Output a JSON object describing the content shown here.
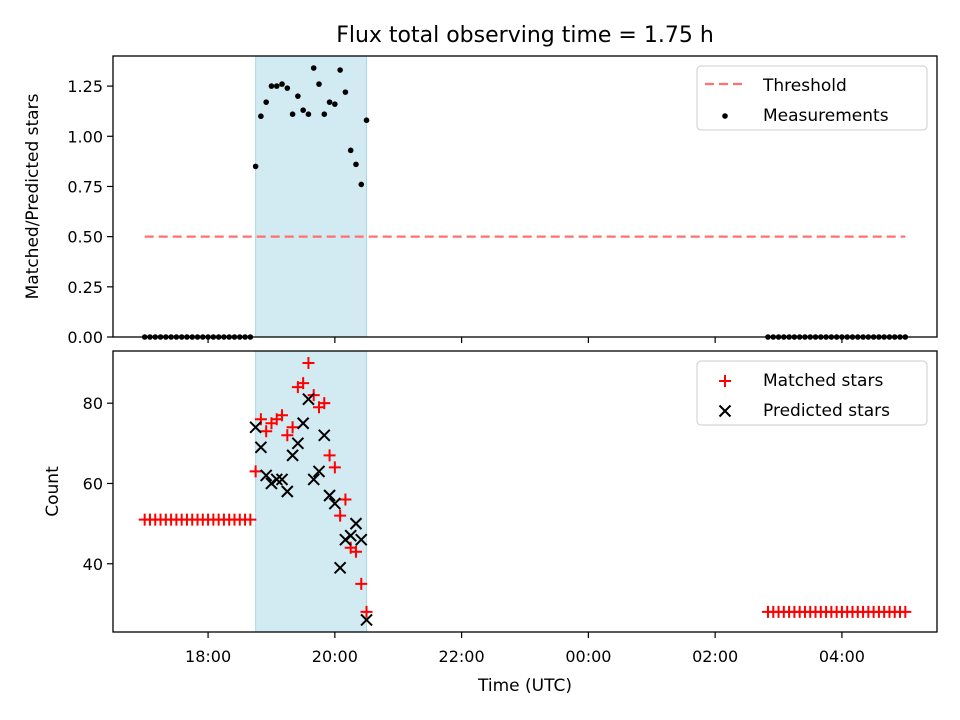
{
  "title": "Flux total observing time = 1.75 h",
  "xlabel": "Time (UTC)",
  "colors": {
    "matched": "#ff0000",
    "predicted": "#000000",
    "threshold": "#ff7070",
    "measurements": "#000000",
    "shade": "#add8e6"
  },
  "chart_data": [
    {
      "type": "scatter",
      "ylabel": "Matched/Predicted stars",
      "ylim": [
        0,
        1.4
      ],
      "yticks": [
        "0.00",
        "0.25",
        "0.50",
        "0.75",
        "1.00",
        "1.25"
      ],
      "shaded_interval": [
        "18:45",
        "20:30"
      ],
      "legend": {
        "placement": "top-right",
        "entries": [
          "Threshold",
          "Measurements"
        ]
      },
      "series": [
        {
          "name": "Threshold",
          "kind": "dashed-line",
          "x": [
            "17:00",
            "05:00"
          ],
          "y": [
            0.5,
            0.5
          ]
        },
        {
          "name": "Measurements",
          "kind": "dots",
          "x": [
            "17:00",
            "17:05",
            "17:10",
            "17:15",
            "17:20",
            "17:25",
            "17:30",
            "17:35",
            "17:40",
            "17:45",
            "17:50",
            "17:55",
            "18:00",
            "18:05",
            "18:10",
            "18:15",
            "18:20",
            "18:25",
            "18:30",
            "18:35",
            "18:40",
            "18:45",
            "18:50",
            "18:55",
            "19:00",
            "19:05",
            "19:10",
            "19:15",
            "19:20",
            "19:25",
            "19:30",
            "19:35",
            "19:40",
            "19:45",
            "19:50",
            "19:55",
            "20:00",
            "20:05",
            "20:10",
            "20:15",
            "20:20",
            "20:25",
            "20:30",
            "02:50",
            "02:55",
            "03:00",
            "03:05",
            "03:10",
            "03:15",
            "03:20",
            "03:25",
            "03:30",
            "03:35",
            "03:40",
            "03:45",
            "03:50",
            "03:55",
            "04:00",
            "04:05",
            "04:10",
            "04:15",
            "04:20",
            "04:25",
            "04:30",
            "04:35",
            "04:40",
            "04:45",
            "04:50",
            "04:55",
            "05:00"
          ],
          "y": [
            0,
            0,
            0,
            0,
            0,
            0,
            0,
            0,
            0,
            0,
            0,
            0,
            0,
            0,
            0,
            0,
            0,
            0,
            0,
            0,
            0,
            0.85,
            1.1,
            1.17,
            1.25,
            1.25,
            1.26,
            1.24,
            1.11,
            1.2,
            1.13,
            1.11,
            1.34,
            1.26,
            1.11,
            1.17,
            1.16,
            1.33,
            1.22,
            0.93,
            0.86,
            0.76,
            1.08,
            0,
            0,
            0,
            0,
            0,
            0,
            0,
            0,
            0,
            0,
            0,
            0,
            0,
            0,
            0,
            0,
            0,
            0,
            0,
            0,
            0,
            0,
            0,
            0,
            0,
            0,
            0
          ]
        }
      ]
    },
    {
      "type": "scatter",
      "ylabel": "Count",
      "ylim": [
        23,
        93
      ],
      "yticks": [
        "40",
        "60",
        "80"
      ],
      "xlim": [
        "16:30",
        "05:30"
      ],
      "xticks": [
        "18:00",
        "20:00",
        "22:00",
        "00:00",
        "02:00",
        "04:00"
      ],
      "shaded_interval": [
        "18:45",
        "20:30"
      ],
      "legend": {
        "placement": "top-right",
        "entries": [
          "Matched stars",
          "Predicted stars"
        ]
      },
      "series": [
        {
          "name": "Matched stars",
          "marker": "plus",
          "x": [
            "17:00",
            "17:05",
            "17:10",
            "17:15",
            "17:20",
            "17:25",
            "17:30",
            "17:35",
            "17:40",
            "17:45",
            "17:50",
            "17:55",
            "18:00",
            "18:05",
            "18:10",
            "18:15",
            "18:20",
            "18:25",
            "18:30",
            "18:35",
            "18:40",
            "18:45",
            "18:50",
            "18:55",
            "19:00",
            "19:05",
            "19:10",
            "19:15",
            "19:20",
            "19:25",
            "19:30",
            "19:35",
            "19:40",
            "19:45",
            "19:50",
            "19:55",
            "20:00",
            "20:05",
            "20:10",
            "20:15",
            "20:20",
            "20:25",
            "20:30",
            "02:50",
            "02:55",
            "03:00",
            "03:05",
            "03:10",
            "03:15",
            "03:20",
            "03:25",
            "03:30",
            "03:35",
            "03:40",
            "03:45",
            "03:50",
            "03:55",
            "04:00",
            "04:05",
            "04:10",
            "04:15",
            "04:20",
            "04:25",
            "04:30",
            "04:35",
            "04:40",
            "04:45",
            "04:50",
            "04:55",
            "05:00"
          ],
          "y": [
            51,
            51,
            51,
            51,
            51,
            51,
            51,
            51,
            51,
            51,
            51,
            51,
            51,
            51,
            51,
            51,
            51,
            51,
            51,
            51,
            51,
            63,
            76,
            73,
            75,
            76,
            77,
            72,
            74,
            84,
            85,
            90,
            82,
            79,
            80,
            67,
            64,
            52,
            56,
            44,
            43,
            35,
            28,
            28,
            28,
            28,
            28,
            28,
            28,
            28,
            28,
            28,
            28,
            28,
            28,
            28,
            28,
            28,
            28,
            28,
            28,
            28,
            28,
            28,
            28,
            28,
            28,
            28,
            28,
            28
          ]
        },
        {
          "name": "Predicted stars",
          "marker": "x",
          "x": [
            "18:45",
            "18:50",
            "18:55",
            "19:00",
            "19:05",
            "19:10",
            "19:15",
            "19:20",
            "19:25",
            "19:30",
            "19:35",
            "19:40",
            "19:45",
            "19:50",
            "19:55",
            "20:00",
            "20:05",
            "20:10",
            "20:15",
            "20:20",
            "20:25",
            "20:30"
          ],
          "y": [
            74,
            69,
            62,
            60,
            61,
            61,
            58,
            67,
            70,
            75,
            81,
            61,
            63,
            72,
            57,
            55,
            39,
            46,
            47,
            50,
            46,
            26
          ]
        }
      ]
    }
  ]
}
